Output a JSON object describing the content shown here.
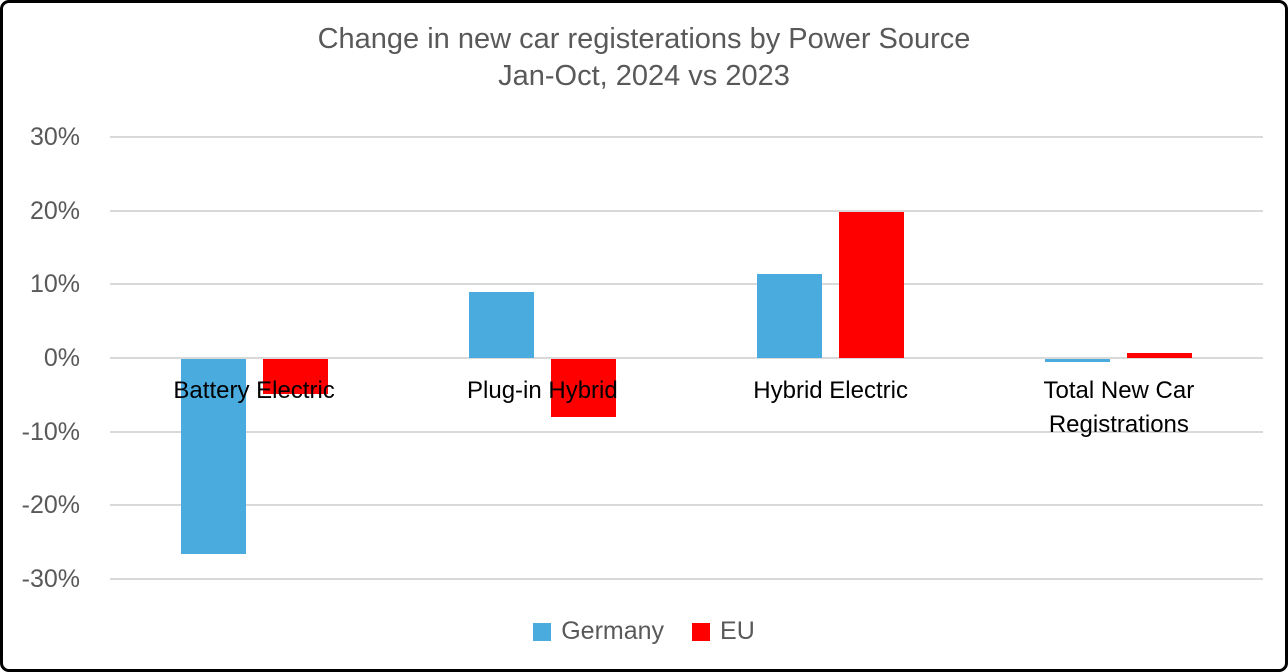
{
  "chart": {
    "title": "Change in new car registerations by Power Source",
    "subtitle": "Jan-Oct, 2024 vs 2023"
  },
  "chart_data": {
    "type": "bar",
    "title": "Change in new car registerations by Power Source",
    "subtitle": "Jan-Oct, 2024 vs 2023",
    "categories": [
      "Battery Electric",
      "Plug-in Hybrid",
      "Hybrid Electric",
      "Total New Car Registrations"
    ],
    "series": [
      {
        "name": "Germany",
        "color": "#4AACDE",
        "values": [
          -26.5,
          8.9,
          11.4,
          -0.4
        ]
      },
      {
        "name": "EU",
        "color": "#FF0000",
        "values": [
          -4.8,
          -7.9,
          19.8,
          0.7
        ]
      }
    ],
    "unit": "%",
    "ylim": [
      -30,
      30
    ],
    "ytick_values": [
      30,
      20,
      10,
      0,
      -10,
      -20,
      -30
    ],
    "ytick_labels": [
      "30%",
      "20%",
      "10%",
      "0%",
      "-10%",
      "-20%",
      "-30%"
    ],
    "grid": true,
    "legend_position": "bottom"
  },
  "colors": {
    "germany_blue": "#4AACDE",
    "eu_red": "#FF0000",
    "gridline": "#D9D9D9",
    "title_text": "#595959",
    "axis_text": "#595959",
    "category_text": "#000000",
    "frame_border": "#000000",
    "background": "#FFFFFF"
  }
}
